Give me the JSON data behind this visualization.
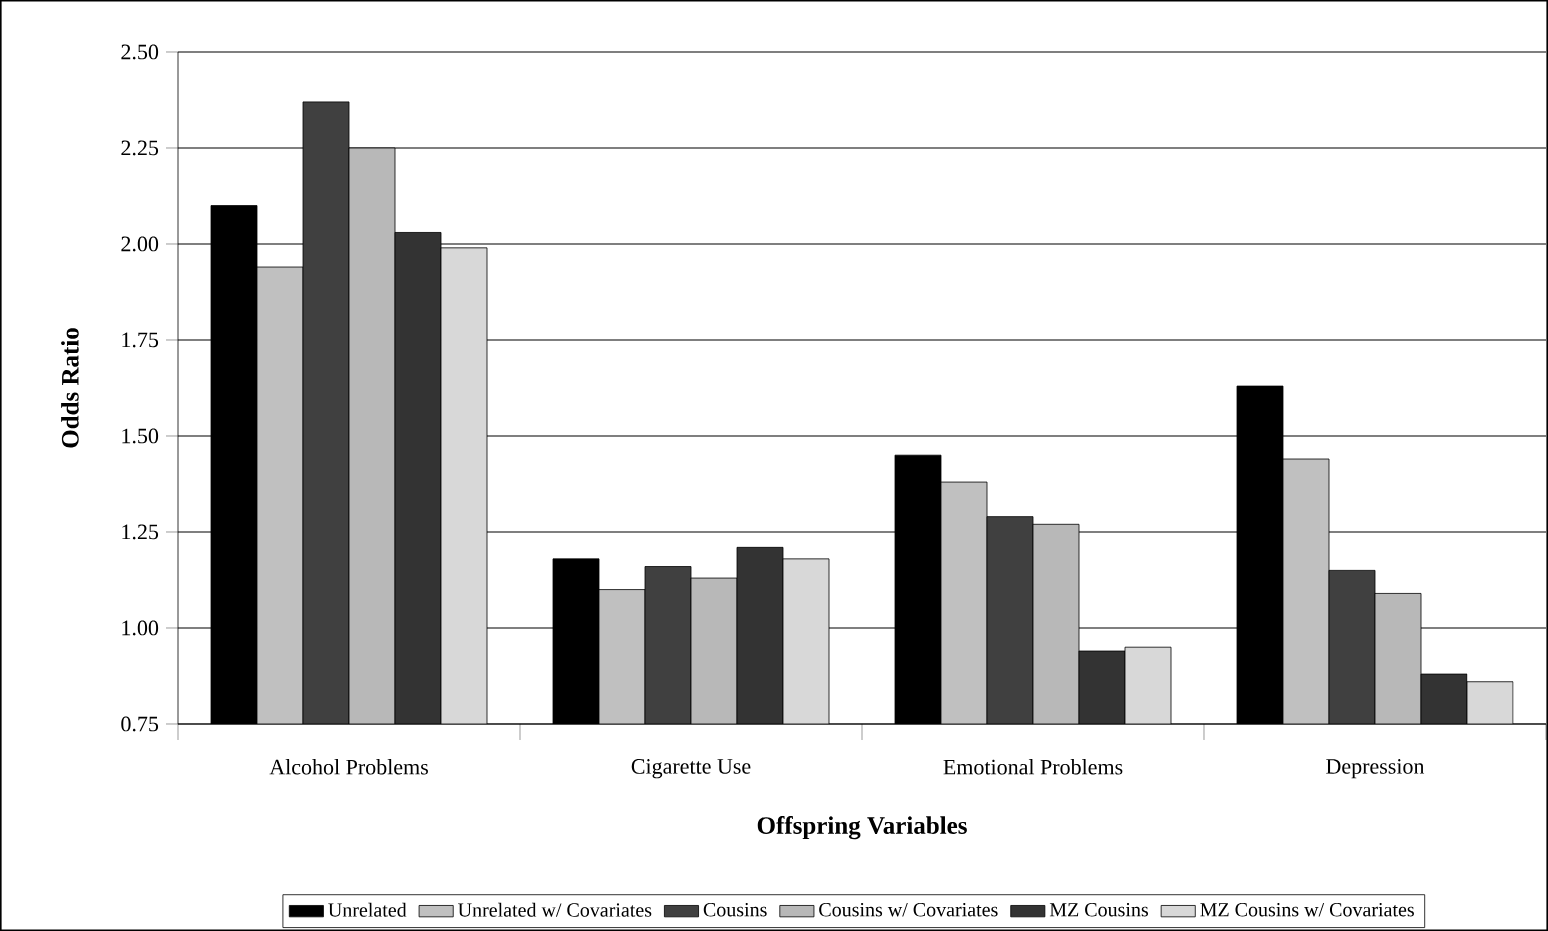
{
  "chart_data": {
    "type": "bar",
    "xlabel": "Offspring Variables",
    "ylabel": "Odds Ratio",
    "categories": [
      "Alcohol Problems",
      "Cigarette  Use",
      "Emotional Problems",
      "Depression"
    ],
    "series": [
      {
        "name": "Unrelated",
        "color": "#000000",
        "values": [
          2.1,
          1.18,
          1.45,
          1.63
        ]
      },
      {
        "name": "Unrelated w/ Covariates",
        "color": "#c0c0c0",
        "values": [
          1.94,
          1.1,
          1.38,
          1.44
        ]
      },
      {
        "name": "Cousins",
        "color": "#404040",
        "values": [
          2.37,
          1.16,
          1.29,
          1.15
        ]
      },
      {
        "name": "Cousins w/ Covariates",
        "color": "#b8b8b8",
        "values": [
          2.25,
          1.13,
          1.27,
          1.09
        ]
      },
      {
        "name": "MZ Cousins",
        "color": "#333333",
        "values": [
          2.03,
          1.21,
          0.94,
          0.88
        ]
      },
      {
        "name": "MZ Cousins w/ Covariates",
        "color": "#d8d8d8",
        "values": [
          1.99,
          1.18,
          0.95,
          0.86
        ]
      }
    ],
    "ylim": [
      0.75,
      2.5
    ],
    "yticks": [
      {
        "value": 0.75,
        "label": "0.75"
      },
      {
        "value": 1.0,
        "label": "1.00"
      },
      {
        "value": 1.25,
        "label": "1.25"
      },
      {
        "value": 1.5,
        "label": "1.50"
      },
      {
        "value": 1.75,
        "label": "1.75"
      },
      {
        "value": 2.0,
        "label": "2.00"
      },
      {
        "value": 2.25,
        "label": "2.25"
      },
      {
        "value": 2.5,
        "label": "2.50"
      }
    ],
    "grid": "y",
    "legend": "bottom"
  }
}
